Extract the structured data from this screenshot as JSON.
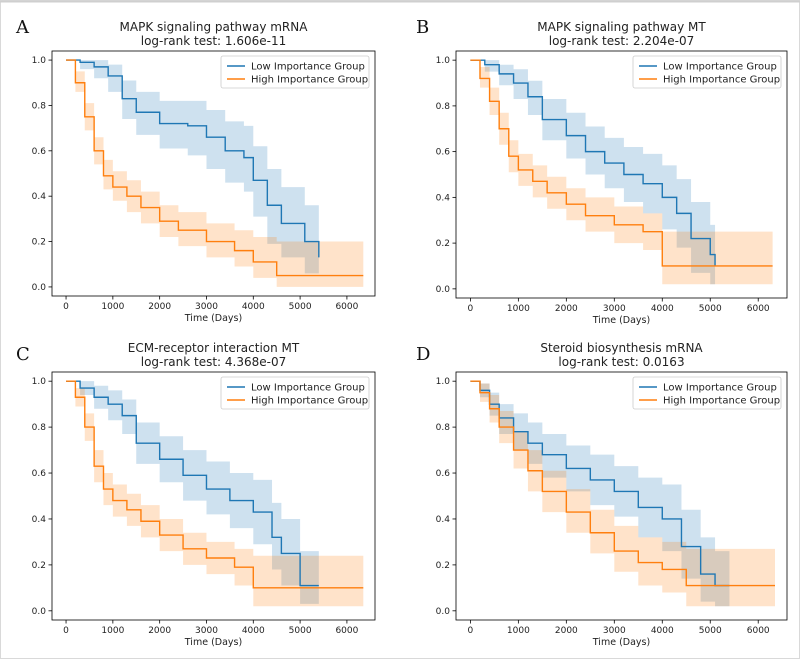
{
  "colors": {
    "low": "#1f77b4",
    "high": "#ff7f0e",
    "frame": "#000000",
    "border": "#d9d9d9"
  },
  "chart_data": [
    {
      "panel": "A",
      "type": "line",
      "title": "MAPK signaling pathway mRNA",
      "subtitle": "log-rank test: 1.606e-11",
      "xlabel": "Time (Days)",
      "ylabel": "",
      "xlim": [
        -300,
        6600
      ],
      "ylim": [
        -0.04,
        1.04
      ],
      "xticks": [
        0,
        1000,
        2000,
        3000,
        4000,
        5000,
        6000
      ],
      "yticks": [
        0.0,
        0.2,
        0.4,
        0.6,
        0.8,
        1.0
      ],
      "grid": false,
      "legend": "top-right",
      "series": [
        {
          "name": "Low Importance Group",
          "color": "#1f77b4",
          "x": [
            0,
            300,
            600,
            900,
            1200,
            1500,
            2000,
            2600,
            3000,
            3400,
            3800,
            4000,
            4300,
            4600,
            5100,
            5400
          ],
          "y": [
            1.0,
            0.99,
            0.97,
            0.93,
            0.83,
            0.77,
            0.72,
            0.71,
            0.66,
            0.6,
            0.57,
            0.47,
            0.36,
            0.28,
            0.2,
            0.13
          ],
          "lo": [
            1.0,
            0.96,
            0.92,
            0.86,
            0.74,
            0.67,
            0.61,
            0.58,
            0.52,
            0.46,
            0.42,
            0.31,
            0.19,
            0.13,
            0.06,
            0.02
          ],
          "hi": [
            1.0,
            1.0,
            1.0,
            0.98,
            0.91,
            0.86,
            0.82,
            0.82,
            0.78,
            0.73,
            0.71,
            0.62,
            0.52,
            0.44,
            0.36,
            0.28
          ]
        },
        {
          "name": "High Importance Group",
          "color": "#ff7f0e",
          "x": [
            0,
            200,
            400,
            600,
            800,
            1000,
            1300,
            1600,
            2000,
            2400,
            3000,
            3600,
            4000,
            4500,
            5000,
            6350
          ],
          "y": [
            1.0,
            0.9,
            0.75,
            0.6,
            0.49,
            0.44,
            0.4,
            0.35,
            0.29,
            0.25,
            0.2,
            0.16,
            0.11,
            0.05,
            0.05,
            0.05
          ],
          "lo": [
            1.0,
            0.86,
            0.69,
            0.54,
            0.43,
            0.38,
            0.33,
            0.28,
            0.22,
            0.18,
            0.13,
            0.09,
            0.04,
            0.0,
            0.0,
            0.0
          ],
          "hi": [
            1.0,
            0.95,
            0.81,
            0.66,
            0.56,
            0.51,
            0.47,
            0.42,
            0.36,
            0.33,
            0.28,
            0.25,
            0.22,
            0.2,
            0.2,
            0.2
          ]
        }
      ]
    },
    {
      "panel": "B",
      "type": "line",
      "title": "MAPK signaling pathway MT",
      "subtitle": "log-rank test: 2.204e-07",
      "xlabel": "Time (Days)",
      "ylabel": "",
      "xlim": [
        -300,
        6600
      ],
      "ylim": [
        -0.04,
        1.04
      ],
      "xticks": [
        0,
        1000,
        2000,
        3000,
        4000,
        5000,
        6000
      ],
      "yticks": [
        0.0,
        0.2,
        0.4,
        0.6,
        0.8,
        1.0
      ],
      "grid": false,
      "legend": "top-right",
      "series": [
        {
          "name": "Low Importance Group",
          "color": "#1f77b4",
          "x": [
            0,
            300,
            600,
            900,
            1200,
            1500,
            2000,
            2400,
            2800,
            3200,
            3600,
            4000,
            4300,
            4600,
            5000,
            5100
          ],
          "y": [
            1.0,
            0.98,
            0.94,
            0.9,
            0.84,
            0.74,
            0.67,
            0.6,
            0.55,
            0.5,
            0.46,
            0.4,
            0.33,
            0.22,
            0.15,
            0.1
          ],
          "lo": [
            1.0,
            0.95,
            0.89,
            0.83,
            0.76,
            0.65,
            0.57,
            0.5,
            0.44,
            0.38,
            0.33,
            0.26,
            0.18,
            0.07,
            0.02,
            0.02
          ],
          "hi": [
            1.0,
            1.0,
            0.98,
            0.96,
            0.91,
            0.83,
            0.77,
            0.71,
            0.66,
            0.62,
            0.59,
            0.54,
            0.48,
            0.38,
            0.28,
            0.25
          ]
        },
        {
          "name": "High Importance Group",
          "color": "#ff7f0e",
          "x": [
            0,
            200,
            400,
            600,
            800,
            1000,
            1300,
            1600,
            2000,
            2400,
            3000,
            3600,
            4000,
            4200,
            5000,
            6300
          ],
          "y": [
            1.0,
            0.92,
            0.82,
            0.7,
            0.58,
            0.52,
            0.47,
            0.42,
            0.37,
            0.32,
            0.28,
            0.25,
            0.1,
            0.1,
            0.1,
            0.1
          ],
          "lo": [
            1.0,
            0.88,
            0.76,
            0.63,
            0.51,
            0.45,
            0.4,
            0.35,
            0.3,
            0.25,
            0.2,
            0.17,
            0.02,
            0.02,
            0.02,
            0.02
          ],
          "hi": [
            1.0,
            0.97,
            0.88,
            0.77,
            0.65,
            0.59,
            0.54,
            0.49,
            0.44,
            0.4,
            0.36,
            0.33,
            0.25,
            0.25,
            0.25,
            0.25
          ]
        }
      ]
    },
    {
      "panel": "C",
      "type": "line",
      "title": "ECM-receptor interaction MT",
      "subtitle": "log-rank test: 4.368e-07",
      "xlabel": "Time (Days)",
      "ylabel": "",
      "xlim": [
        -300,
        6600
      ],
      "ylim": [
        -0.04,
        1.04
      ],
      "xticks": [
        0,
        1000,
        2000,
        3000,
        4000,
        5000,
        6000
      ],
      "yticks": [
        0.0,
        0.2,
        0.4,
        0.6,
        0.8,
        1.0
      ],
      "grid": false,
      "legend": "top-right",
      "series": [
        {
          "name": "Low Importance Group",
          "color": "#1f77b4",
          "x": [
            0,
            300,
            600,
            900,
            1200,
            1500,
            2000,
            2500,
            3000,
            3500,
            4000,
            4400,
            4600,
            5000,
            5400
          ],
          "y": [
            1.0,
            0.97,
            0.93,
            0.9,
            0.85,
            0.73,
            0.66,
            0.59,
            0.53,
            0.48,
            0.43,
            0.32,
            0.25,
            0.11,
            0.11
          ],
          "lo": [
            1.0,
            0.94,
            0.88,
            0.83,
            0.77,
            0.64,
            0.56,
            0.48,
            0.42,
            0.36,
            0.29,
            0.18,
            0.11,
            0.03,
            0.02
          ],
          "hi": [
            1.0,
            1.0,
            0.98,
            0.96,
            0.92,
            0.82,
            0.76,
            0.7,
            0.65,
            0.6,
            0.57,
            0.47,
            0.4,
            0.26,
            0.25
          ]
        },
        {
          "name": "High Importance Group",
          "color": "#ff7f0e",
          "x": [
            0,
            200,
            400,
            600,
            800,
            1000,
            1300,
            1600,
            2000,
            2500,
            3000,
            3600,
            4000,
            4300,
            5000,
            6350
          ],
          "y": [
            1.0,
            0.93,
            0.8,
            0.63,
            0.53,
            0.48,
            0.44,
            0.39,
            0.33,
            0.27,
            0.23,
            0.19,
            0.1,
            0.1,
            0.1,
            0.1
          ],
          "lo": [
            1.0,
            0.89,
            0.74,
            0.56,
            0.46,
            0.41,
            0.37,
            0.32,
            0.26,
            0.2,
            0.16,
            0.11,
            0.02,
            0.02,
            0.02,
            0.02
          ],
          "hi": [
            1.0,
            0.97,
            0.86,
            0.7,
            0.6,
            0.55,
            0.51,
            0.46,
            0.4,
            0.34,
            0.3,
            0.27,
            0.24,
            0.24,
            0.24,
            0.24
          ]
        }
      ]
    },
    {
      "panel": "D",
      "type": "line",
      "title": "Steroid biosynthesis mRNA",
      "subtitle": "log-rank test: 0.0163",
      "xlabel": "Time (Days)",
      "ylabel": "",
      "xlim": [
        -300,
        6600
      ],
      "ylim": [
        -0.04,
        1.04
      ],
      "xticks": [
        0,
        1000,
        2000,
        3000,
        4000,
        5000,
        6000
      ],
      "yticks": [
        0.0,
        0.2,
        0.4,
        0.6,
        0.8,
        1.0
      ],
      "grid": false,
      "legend": "top-right",
      "series": [
        {
          "name": "Low Importance Group",
          "color": "#1f77b4",
          "x": [
            0,
            200,
            400,
            600,
            900,
            1200,
            1500,
            2000,
            2500,
            3000,
            3500,
            4000,
            4400,
            4800,
            5100,
            5400
          ],
          "y": [
            1.0,
            0.96,
            0.9,
            0.84,
            0.78,
            0.73,
            0.68,
            0.62,
            0.57,
            0.52,
            0.45,
            0.4,
            0.28,
            0.16,
            0.11,
            0.11
          ],
          "lo": [
            1.0,
            0.93,
            0.85,
            0.77,
            0.7,
            0.64,
            0.58,
            0.52,
            0.46,
            0.41,
            0.32,
            0.26,
            0.14,
            0.04,
            0.02,
            0.02
          ],
          "hi": [
            1.0,
            0.99,
            0.95,
            0.9,
            0.86,
            0.82,
            0.77,
            0.72,
            0.68,
            0.63,
            0.58,
            0.55,
            0.44,
            0.32,
            0.26,
            0.25
          ]
        },
        {
          "name": "High Importance Group",
          "color": "#ff7f0e",
          "x": [
            0,
            200,
            400,
            600,
            900,
            1200,
            1500,
            2000,
            2500,
            3000,
            3500,
            4000,
            4500,
            5000,
            6350
          ],
          "y": [
            1.0,
            0.95,
            0.88,
            0.8,
            0.7,
            0.61,
            0.52,
            0.43,
            0.34,
            0.26,
            0.21,
            0.18,
            0.11,
            0.11,
            0.11
          ],
          "lo": [
            1.0,
            0.91,
            0.82,
            0.73,
            0.62,
            0.52,
            0.43,
            0.34,
            0.25,
            0.17,
            0.11,
            0.08,
            0.02,
            0.02,
            0.02
          ],
          "hi": [
            1.0,
            0.99,
            0.94,
            0.87,
            0.78,
            0.7,
            0.61,
            0.53,
            0.44,
            0.37,
            0.32,
            0.3,
            0.27,
            0.27,
            0.27
          ]
        }
      ]
    }
  ]
}
